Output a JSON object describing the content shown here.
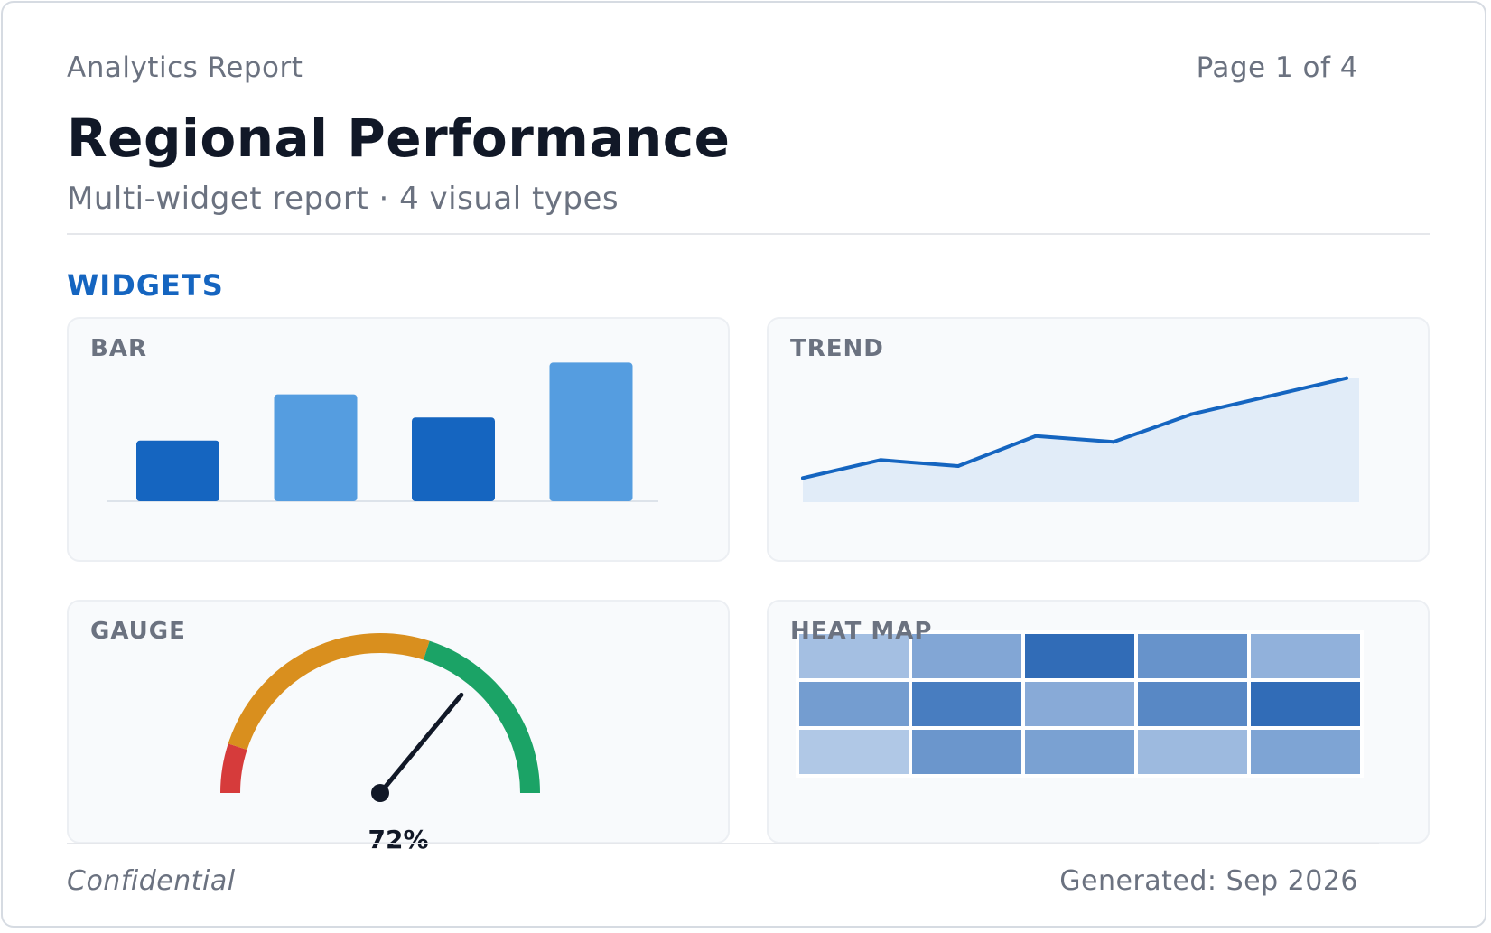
{
  "header": {
    "eyebrow": "Analytics Report",
    "page_number": "Page 1 of 4",
    "title": "Regional Performance",
    "subtitle": "Multi-widget report · 4 visual types"
  },
  "section": {
    "label": "WIDGETS"
  },
  "widgets": {
    "bar": {
      "title": "BAR"
    },
    "trend": {
      "title": "TREND"
    },
    "gauge": {
      "title": "GAUGE"
    },
    "heatmap": {
      "title": "HEAT MAP"
    }
  },
  "footer": {
    "left": "Confidential",
    "right": "Generated: Sep 2026"
  },
  "colors": {
    "accent": "#1565c0",
    "bar_dark": "#1565c0",
    "bar_light": "#559de0",
    "trend_line": "#1565c0",
    "trend_fill": "#e1ecf8",
    "gauge_red": "#d63b3b",
    "gauge_amber": "#d98f1e",
    "gauge_green": "#1ba366",
    "needle": "#111827"
  },
  "chart_data": [
    {
      "type": "bar",
      "title": "BAR",
      "categories": [
        "",
        "",
        "",
        ""
      ],
      "values": [
        42,
        74,
        58,
        96
      ],
      "ylim": [
        0,
        100
      ],
      "grid": false
    },
    {
      "type": "area",
      "title": "TREND",
      "x": [
        1,
        2,
        3,
        4,
        5,
        6,
        7,
        8
      ],
      "values": [
        20,
        35,
        30,
        55,
        50,
        73,
        88,
        103
      ],
      "ylim": [
        0,
        120
      ],
      "grid": false
    },
    {
      "type": "gauge",
      "title": "GAUGE",
      "value": 72,
      "value_label": "72%",
      "range": [
        0,
        100
      ],
      "bands": [
        {
          "from": 0,
          "to": 10,
          "color": "#d63b3b"
        },
        {
          "from": 10,
          "to": 60,
          "color": "#d98f1e"
        },
        {
          "from": 60,
          "to": 100,
          "color": "#1ba366"
        }
      ]
    },
    {
      "type": "heatmap",
      "title": "HEAT MAP",
      "rows": 3,
      "cols": 5,
      "values": [
        [
          0.3,
          0.48,
          0.9,
          0.62,
          0.4
        ],
        [
          0.55,
          0.78,
          0.45,
          0.7,
          0.9
        ],
        [
          0.24,
          0.6,
          0.52,
          0.34,
          0.5
        ]
      ]
    }
  ]
}
